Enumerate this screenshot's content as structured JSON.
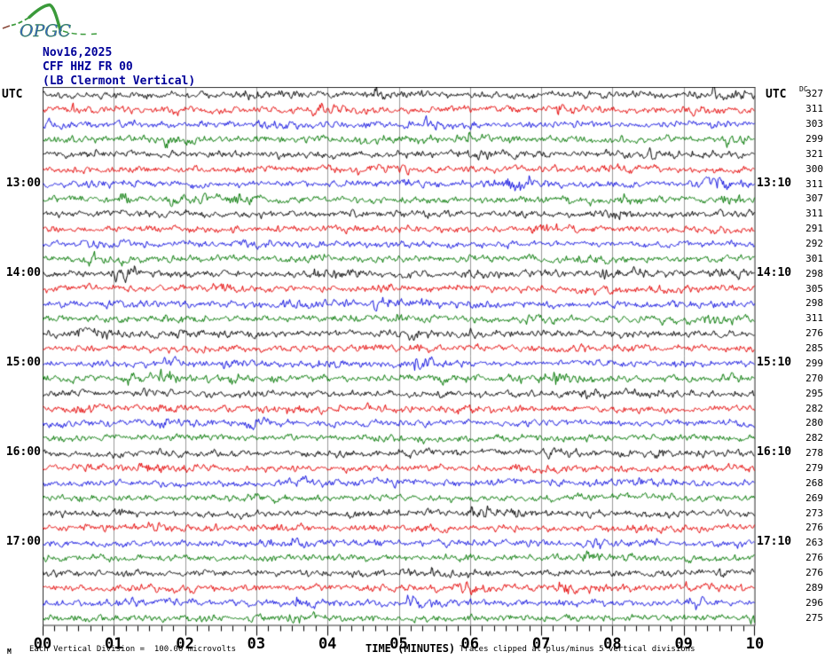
{
  "logo": {
    "text": "OPGC",
    "curve_color": "#3a9a3a",
    "text_color": "#3b63c4",
    "dash_color": "#8a4a3a"
  },
  "header": {
    "date": "Nov16,2025",
    "station": "CFF HHZ FR 00",
    "location": "(LB  Clermont Vertical)"
  },
  "left_axis_title": "UTC",
  "right_axis_title": "UTC",
  "dc_header": "DC",
  "footer": {
    "mu_glyph": "M",
    "scale_note": "Each Vertical Division =  100.00 microvolts",
    "xaxis_title": "TIME (MINUTES)",
    "clip_note": "Traces clipped at plus/minus 5 vertical divisions"
  },
  "chart_data": {
    "type": "line",
    "subtype": "helicorder-seismogram",
    "title": "CFF HHZ FR 00 webicorder Nov16,2025",
    "xlabel": "TIME (MINUTES)",
    "x_range_minutes": [
      0,
      10
    ],
    "x_tick_labels": [
      "00",
      "01",
      "02",
      "03",
      "04",
      "05",
      "06",
      "07",
      "08",
      "09",
      "10"
    ],
    "minor_ticks_per_minute": 6,
    "rows": 36,
    "minutes_per_row": 10,
    "grid": true,
    "grid_color": "#999999",
    "border_color": "#333333",
    "trace_color_cycle": [
      "#000000",
      "#e60000",
      "#0f0fe0",
      "#007700"
    ],
    "left_time_labels": [
      {
        "row": 7,
        "label": "13:00"
      },
      {
        "row": 13,
        "label": "14:00"
      },
      {
        "row": 19,
        "label": "15:00"
      },
      {
        "row": 25,
        "label": "16:00"
      },
      {
        "row": 31,
        "label": "17:00"
      }
    ],
    "right_time_labels": [
      {
        "row": 7,
        "label": "13:10"
      },
      {
        "row": 13,
        "label": "14:10"
      },
      {
        "row": 19,
        "label": "15:10"
      },
      {
        "row": 25,
        "label": "16:10"
      },
      {
        "row": 31,
        "label": "17:10"
      }
    ],
    "dc_values": [
      327,
      311,
      303,
      299,
      321,
      300,
      311,
      307,
      311,
      291,
      292,
      301,
      298,
      305,
      298,
      311,
      276,
      285,
      299,
      270,
      295,
      282,
      280,
      282,
      278,
      279,
      268,
      269,
      273,
      276,
      263,
      276,
      276,
      289,
      296,
      275
    ],
    "events": [
      {
        "row": 7,
        "minute": 6.65,
        "amp": 2.6,
        "decay": 18
      },
      {
        "row": 7,
        "minute": 9.35,
        "amp": 3.0,
        "decay": 14
      },
      {
        "row": 8,
        "minute": 1.15,
        "amp": 2.2,
        "decay": 12
      },
      {
        "row": 13,
        "minute": 1.05,
        "amp": 3.2,
        "decay": 16
      },
      {
        "row": 14,
        "minute": 2.45,
        "amp": 2.3,
        "decay": 14
      },
      {
        "row": 16,
        "minute": 5.0,
        "amp": 1.8,
        "decay": 10
      },
      {
        "row": 19,
        "minute": 5.25,
        "amp": 2.5,
        "decay": 16
      },
      {
        "row": 23,
        "minute": 2.9,
        "amp": 2.0,
        "decay": 12
      },
      {
        "row": 30,
        "minute": 1.55,
        "amp": 2.5,
        "decay": 10
      },
      {
        "row": 31,
        "minute": 7.8,
        "amp": 1.9,
        "decay": 14
      },
      {
        "row": 35,
        "minute": 9.1,
        "amp": 2.1,
        "decay": 10
      }
    ]
  }
}
